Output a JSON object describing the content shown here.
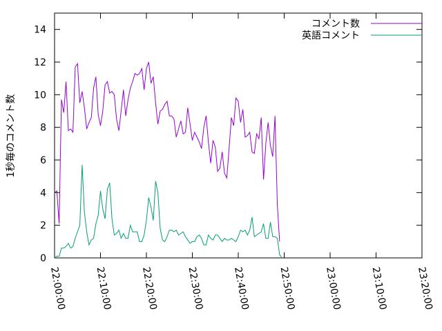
{
  "chart_data": {
    "type": "line",
    "ylabel": "1秒毎のコメント数",
    "xlabel": "",
    "ylim": [
      0,
      15
    ],
    "xlim": [
      "22:00:00",
      "23:20:00"
    ],
    "grid": false,
    "legend_position": "top-right",
    "y_ticks": [
      "0",
      "2",
      "4",
      "6",
      "8",
      "10",
      "12",
      "14"
    ],
    "x_ticks": [
      "22:00:00",
      "22:10:00",
      "22:20:00",
      "22:30:00",
      "22:40:00",
      "22:50:00",
      "23:00:00",
      "23:10:00",
      "23:20:00"
    ],
    "series": [
      {
        "name": "コメント数",
        "color": "#9400d3",
        "points": [
          [
            "22:00:00",
            4.0
          ],
          [
            "22:00:30",
            4.1
          ],
          [
            "22:01:00",
            2.1
          ],
          [
            "22:01:30",
            9.7
          ],
          [
            "22:02:00",
            8.9
          ],
          [
            "22:02:30",
            10.8
          ],
          [
            "22:03:00",
            7.8
          ],
          [
            "22:03:30",
            7.9
          ],
          [
            "22:04:00",
            7.7
          ],
          [
            "22:04:30",
            11.7
          ],
          [
            "22:05:00",
            11.9
          ],
          [
            "22:05:30",
            9.5
          ],
          [
            "22:06:00",
            10.2
          ],
          [
            "22:06:30",
            9.2
          ],
          [
            "22:07:00",
            7.9
          ],
          [
            "22:07:30",
            8.3
          ],
          [
            "22:08:00",
            8.6
          ],
          [
            "22:08:30",
            10.4
          ],
          [
            "22:09:00",
            11.1
          ],
          [
            "22:09:30",
            8.8
          ],
          [
            "22:10:00",
            8.1
          ],
          [
            "22:10:30",
            9.0
          ],
          [
            "22:11:00",
            10.6
          ],
          [
            "22:11:30",
            10.8
          ],
          [
            "22:12:00",
            10.1
          ],
          [
            "22:12:30",
            10.2
          ],
          [
            "22:13:00",
            10.0
          ],
          [
            "22:13:30",
            8.5
          ],
          [
            "22:14:00",
            7.8
          ],
          [
            "22:14:30",
            9.0
          ],
          [
            "22:15:00",
            10.3
          ],
          [
            "22:15:30",
            8.7
          ],
          [
            "22:16:00",
            9.7
          ],
          [
            "22:16:30",
            10.4
          ],
          [
            "22:17:00",
            10.8
          ],
          [
            "22:17:30",
            11.3
          ],
          [
            "22:18:00",
            11.2
          ],
          [
            "22:18:30",
            11.3
          ],
          [
            "22:19:00",
            11.6
          ],
          [
            "22:19:30",
            10.3
          ],
          [
            "22:20:00",
            11.6
          ],
          [
            "22:20:30",
            12.0
          ],
          [
            "22:21:00",
            10.7
          ],
          [
            "22:21:30",
            11.1
          ],
          [
            "22:22:00",
            9.5
          ],
          [
            "22:22:30",
            8.2
          ],
          [
            "22:23:00",
            9.0
          ],
          [
            "22:23:30",
            9.1
          ],
          [
            "22:24:00",
            9.4
          ],
          [
            "22:24:30",
            9.6
          ],
          [
            "22:25:00",
            8.7
          ],
          [
            "22:25:30",
            8.7
          ],
          [
            "22:26:00",
            8.5
          ],
          [
            "22:26:30",
            7.4
          ],
          [
            "22:27:00",
            7.9
          ],
          [
            "22:27:30",
            8.4
          ],
          [
            "22:28:00",
            7.6
          ],
          [
            "22:28:30",
            7.7
          ],
          [
            "22:29:00",
            9.2
          ],
          [
            "22:29:30",
            8.2
          ],
          [
            "22:30:00",
            7.2
          ],
          [
            "22:30:30",
            7.7
          ],
          [
            "22:31:00",
            7.4
          ],
          [
            "22:31:30",
            7.1
          ],
          [
            "22:32:00",
            6.7
          ],
          [
            "22:32:30",
            8.0
          ],
          [
            "22:33:00",
            8.7
          ],
          [
            "22:33:30",
            7.1
          ],
          [
            "22:34:00",
            5.8
          ],
          [
            "22:34:30",
            7.2
          ],
          [
            "22:35:00",
            6.8
          ],
          [
            "22:35:30",
            5.3
          ],
          [
            "22:36:00",
            5.5
          ],
          [
            "22:36:30",
            6.5
          ],
          [
            "22:37:00",
            5.2
          ],
          [
            "22:37:30",
            4.9
          ],
          [
            "22:38:00",
            6.7
          ],
          [
            "22:38:30",
            8.6
          ],
          [
            "22:39:00",
            8.1
          ],
          [
            "22:39:30",
            9.8
          ],
          [
            "22:40:00",
            9.6
          ],
          [
            "22:40:30",
            8.3
          ],
          [
            "22:41:00",
            9.1
          ],
          [
            "22:41:30",
            7.4
          ],
          [
            "22:42:00",
            7.5
          ],
          [
            "22:42:30",
            7.7
          ],
          [
            "22:43:00",
            6.5
          ],
          [
            "22:43:30",
            6.4
          ],
          [
            "22:44:00",
            7.6
          ],
          [
            "22:44:30",
            7.3
          ],
          [
            "22:45:00",
            8.6
          ],
          [
            "22:45:30",
            4.8
          ],
          [
            "22:46:00",
            7.0
          ],
          [
            "22:46:30",
            8.3
          ],
          [
            "22:47:00",
            6.9
          ],
          [
            "22:47:30",
            6.2
          ],
          [
            "22:48:00",
            8.7
          ],
          [
            "22:48:30",
            3.3
          ],
          [
            "22:49:00",
            1.0
          ]
        ]
      },
      {
        "name": "英語コメント",
        "color": "#009e73",
        "points": [
          [
            "22:00:00",
            0.0
          ],
          [
            "22:00:30",
            0.1
          ],
          [
            "22:01:00",
            0.1
          ],
          [
            "22:01:30",
            0.6
          ],
          [
            "22:02:00",
            0.6
          ],
          [
            "22:02:30",
            0.7
          ],
          [
            "22:03:00",
            0.9
          ],
          [
            "22:03:30",
            0.6
          ],
          [
            "22:04:00",
            0.7
          ],
          [
            "22:04:30",
            1.2
          ],
          [
            "22:05:00",
            1.6
          ],
          [
            "22:05:30",
            2.0
          ],
          [
            "22:06:00",
            5.7
          ],
          [
            "22:06:30",
            2.8
          ],
          [
            "22:07:00",
            1.6
          ],
          [
            "22:07:30",
            0.8
          ],
          [
            "22:08:00",
            1.1
          ],
          [
            "22:08:30",
            1.2
          ],
          [
            "22:09:00",
            2.1
          ],
          [
            "22:09:30",
            2.6
          ],
          [
            "22:10:00",
            4.1
          ],
          [
            "22:10:30",
            3.0
          ],
          [
            "22:11:00",
            2.4
          ],
          [
            "22:11:30",
            4.2
          ],
          [
            "22:12:00",
            4.6
          ],
          [
            "22:12:30",
            2.4
          ],
          [
            "22:13:00",
            1.4
          ],
          [
            "22:13:30",
            1.5
          ],
          [
            "22:14:00",
            1.7
          ],
          [
            "22:14:30",
            1.2
          ],
          [
            "22:15:00",
            1.5
          ],
          [
            "22:15:30",
            1.2
          ],
          [
            "22:16:00",
            1.2
          ],
          [
            "22:16:30",
            2.0
          ],
          [
            "22:17:00",
            1.6
          ],
          [
            "22:17:30",
            1.6
          ],
          [
            "22:18:00",
            1.6
          ],
          [
            "22:18:30",
            1.0
          ],
          [
            "22:19:00",
            1.0
          ],
          [
            "22:19:30",
            1.4
          ],
          [
            "22:20:00",
            2.3
          ],
          [
            "22:20:30",
            3.7
          ],
          [
            "22:21:00",
            3.1
          ],
          [
            "22:21:30",
            2.3
          ],
          [
            "22:22:00",
            4.7
          ],
          [
            "22:22:30",
            4.0
          ],
          [
            "22:23:00",
            1.8
          ],
          [
            "22:23:30",
            1.1
          ],
          [
            "22:24:00",
            1.0
          ],
          [
            "22:24:30",
            1.3
          ],
          [
            "22:25:00",
            1.7
          ],
          [
            "22:25:30",
            1.7
          ],
          [
            "22:26:00",
            1.6
          ],
          [
            "22:26:30",
            1.7
          ],
          [
            "22:27:00",
            1.4
          ],
          [
            "22:27:30",
            1.5
          ],
          [
            "22:28:00",
            1.6
          ],
          [
            "22:28:30",
            1.3
          ],
          [
            "22:29:00",
            1.1
          ],
          [
            "22:29:30",
            0.9
          ],
          [
            "22:30:00",
            1.0
          ],
          [
            "22:30:30",
            1.0
          ],
          [
            "22:31:00",
            1.3
          ],
          [
            "22:31:30",
            1.4
          ],
          [
            "22:32:00",
            1.2
          ],
          [
            "22:32:30",
            0.8
          ],
          [
            "22:33:00",
            0.8
          ],
          [
            "22:33:30",
            1.4
          ],
          [
            "22:34:00",
            1.2
          ],
          [
            "22:34:30",
            1.1
          ],
          [
            "22:35:00",
            1.4
          ],
          [
            "22:35:30",
            1.4
          ],
          [
            "22:36:00",
            1.2
          ],
          [
            "22:36:30",
            1.0
          ],
          [
            "22:37:00",
            1.2
          ],
          [
            "22:37:30",
            1.1
          ],
          [
            "22:38:00",
            1.1
          ],
          [
            "22:38:30",
            1.2
          ],
          [
            "22:39:00",
            1.1
          ],
          [
            "22:39:30",
            1.0
          ],
          [
            "22:40:00",
            1.3
          ],
          [
            "22:40:30",
            1.7
          ],
          [
            "22:41:00",
            1.6
          ],
          [
            "22:41:30",
            1.7
          ],
          [
            "22:42:00",
            1.4
          ],
          [
            "22:42:30",
            1.7
          ],
          [
            "22:43:00",
            2.5
          ],
          [
            "22:43:30",
            1.3
          ],
          [
            "22:44:00",
            1.4
          ],
          [
            "22:44:30",
            1.5
          ],
          [
            "22:45:00",
            1.6
          ],
          [
            "22:45:30",
            2.1
          ],
          [
            "22:46:00",
            1.2
          ],
          [
            "22:46:30",
            1.2
          ],
          [
            "22:47:00",
            2.2
          ],
          [
            "22:47:30",
            1.3
          ],
          [
            "22:48:00",
            1.3
          ],
          [
            "22:48:30",
            1.2
          ],
          [
            "22:49:00",
            0.2
          ],
          [
            "22:49:30",
            0.0
          ]
        ]
      }
    ]
  }
}
